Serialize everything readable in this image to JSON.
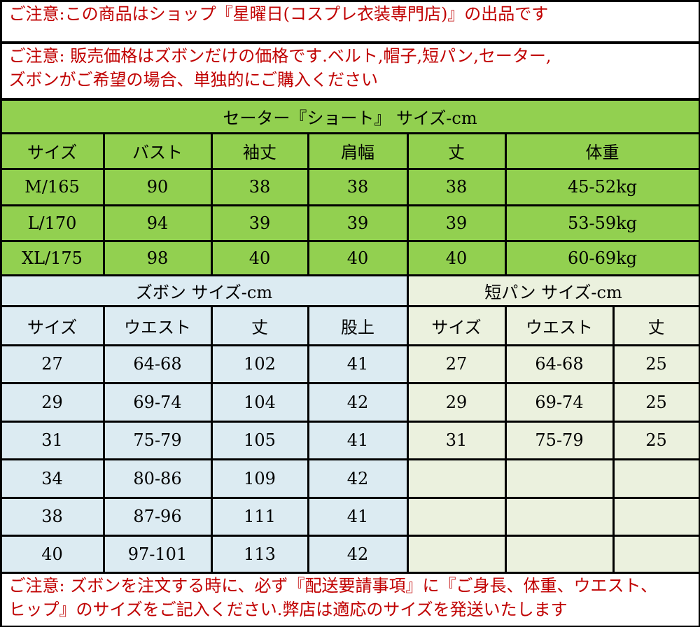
{
  "notices": {
    "top": "ご注意:この商品はショップ『星曜日(コスプレ衣装専門店)』の出品です",
    "price": [
      "ご注意: 販売価格はズボンだけの価格です.ベルト,帽子,短パン,セーター,",
      "ズボンがご希望の場合、単独的にご購入ください"
    ],
    "bottom": [
      "ご注意: ズボンを注文する時に、必ず『配送要請事項』に『ご身長、体重、ウエスト、",
      "ヒップ』のサイズをご記入ください.弊店は適応のサイズを発送いたします"
    ]
  },
  "sweater": {
    "title": "セーター『ショート』 サイズ-cm",
    "headers": [
      "サイズ",
      "バスト",
      "袖丈",
      "肩幅",
      "丈",
      "体重"
    ],
    "rows": [
      [
        "M/165",
        "90",
        "38",
        "38",
        "38",
        "45-52kg"
      ],
      [
        "L/170",
        "94",
        "39",
        "39",
        "39",
        "53-59kg"
      ],
      [
        "XL/175",
        "98",
        "40",
        "40",
        "40",
        "60-69kg"
      ]
    ]
  },
  "pants": {
    "title": "ズボン サイズ-cm",
    "headers": [
      "サイズ",
      "ウエスト",
      "丈",
      "股上"
    ],
    "rows": [
      [
        "27",
        "64-68",
        "102",
        "41"
      ],
      [
        "29",
        "69-74",
        "104",
        "42"
      ],
      [
        "31",
        "75-79",
        "105",
        "41"
      ],
      [
        "34",
        "80-86",
        "109",
        "42"
      ],
      [
        "38",
        "87-96",
        "111",
        "41"
      ],
      [
        "40",
        "97-101",
        "113",
        "42"
      ]
    ]
  },
  "shorts": {
    "title": "短パン サイズ-cm",
    "headers": [
      "サイズ",
      "ウエスト",
      "丈"
    ],
    "rows": [
      [
        "27",
        "64-68",
        "25"
      ],
      [
        "29",
        "69-74",
        "25"
      ],
      [
        "31",
        "75-79",
        "25"
      ]
    ]
  }
}
